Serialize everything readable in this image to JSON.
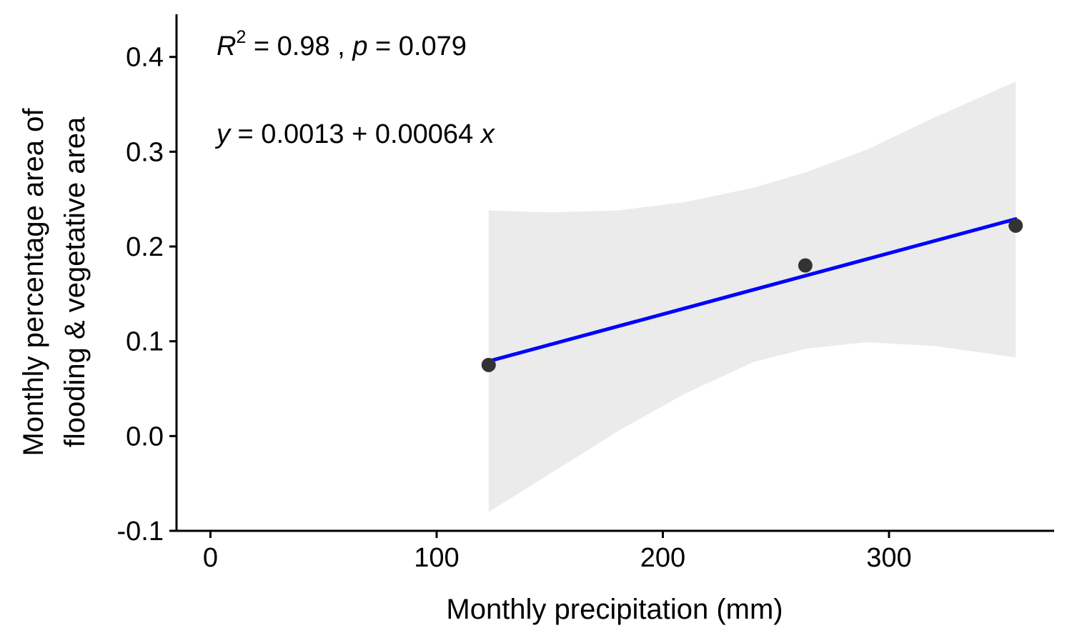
{
  "chart_data": {
    "type": "scatter",
    "title": "",
    "xlabel": "Monthly precipitation (mm)",
    "ylabel_lines": [
      "Monthly percentage area of",
      "flooding & vegetative area"
    ],
    "xlim": [
      -15,
      373
    ],
    "ylim": [
      -0.1,
      0.445
    ],
    "x_ticks": [
      0,
      100,
      200,
      300
    ],
    "y_ticks": [
      -0.1,
      0.0,
      0.1,
      0.2,
      0.3,
      0.4
    ],
    "x_tick_labels": [
      "0",
      "100",
      "200",
      "300"
    ],
    "y_tick_labels": [
      "-0.1",
      "0.0",
      "0.1",
      "0.2",
      "0.3",
      "0.4"
    ],
    "grid": false,
    "points": [
      {
        "x": 123,
        "y": 0.075
      },
      {
        "x": 263,
        "y": 0.18
      },
      {
        "x": 356,
        "y": 0.222
      }
    ],
    "fit_line": {
      "x": [
        123,
        356
      ],
      "y": [
        0.079,
        0.229
      ],
      "color": "#0000ff"
    },
    "confidence_band": {
      "color": "#ebebeb",
      "x": [
        123,
        150,
        180,
        210,
        240,
        263,
        290,
        320,
        356
      ],
      "upper": [
        0.238,
        0.236,
        0.238,
        0.247,
        0.262,
        0.278,
        0.302,
        0.336,
        0.374
      ],
      "lower": [
        -0.08,
        -0.04,
        0.005,
        0.045,
        0.078,
        0.092,
        0.099,
        0.095,
        0.083
      ]
    },
    "point_color": "#333333",
    "annotations": {
      "stats": {
        "r": "R",
        "sup": "2",
        "mid": " = 0.98 , ",
        "p": "p",
        "end": " = 0.079"
      },
      "equation": {
        "y": "y",
        "rhs": " = 0.0013 + 0.00064 ",
        "x": "x"
      }
    }
  }
}
